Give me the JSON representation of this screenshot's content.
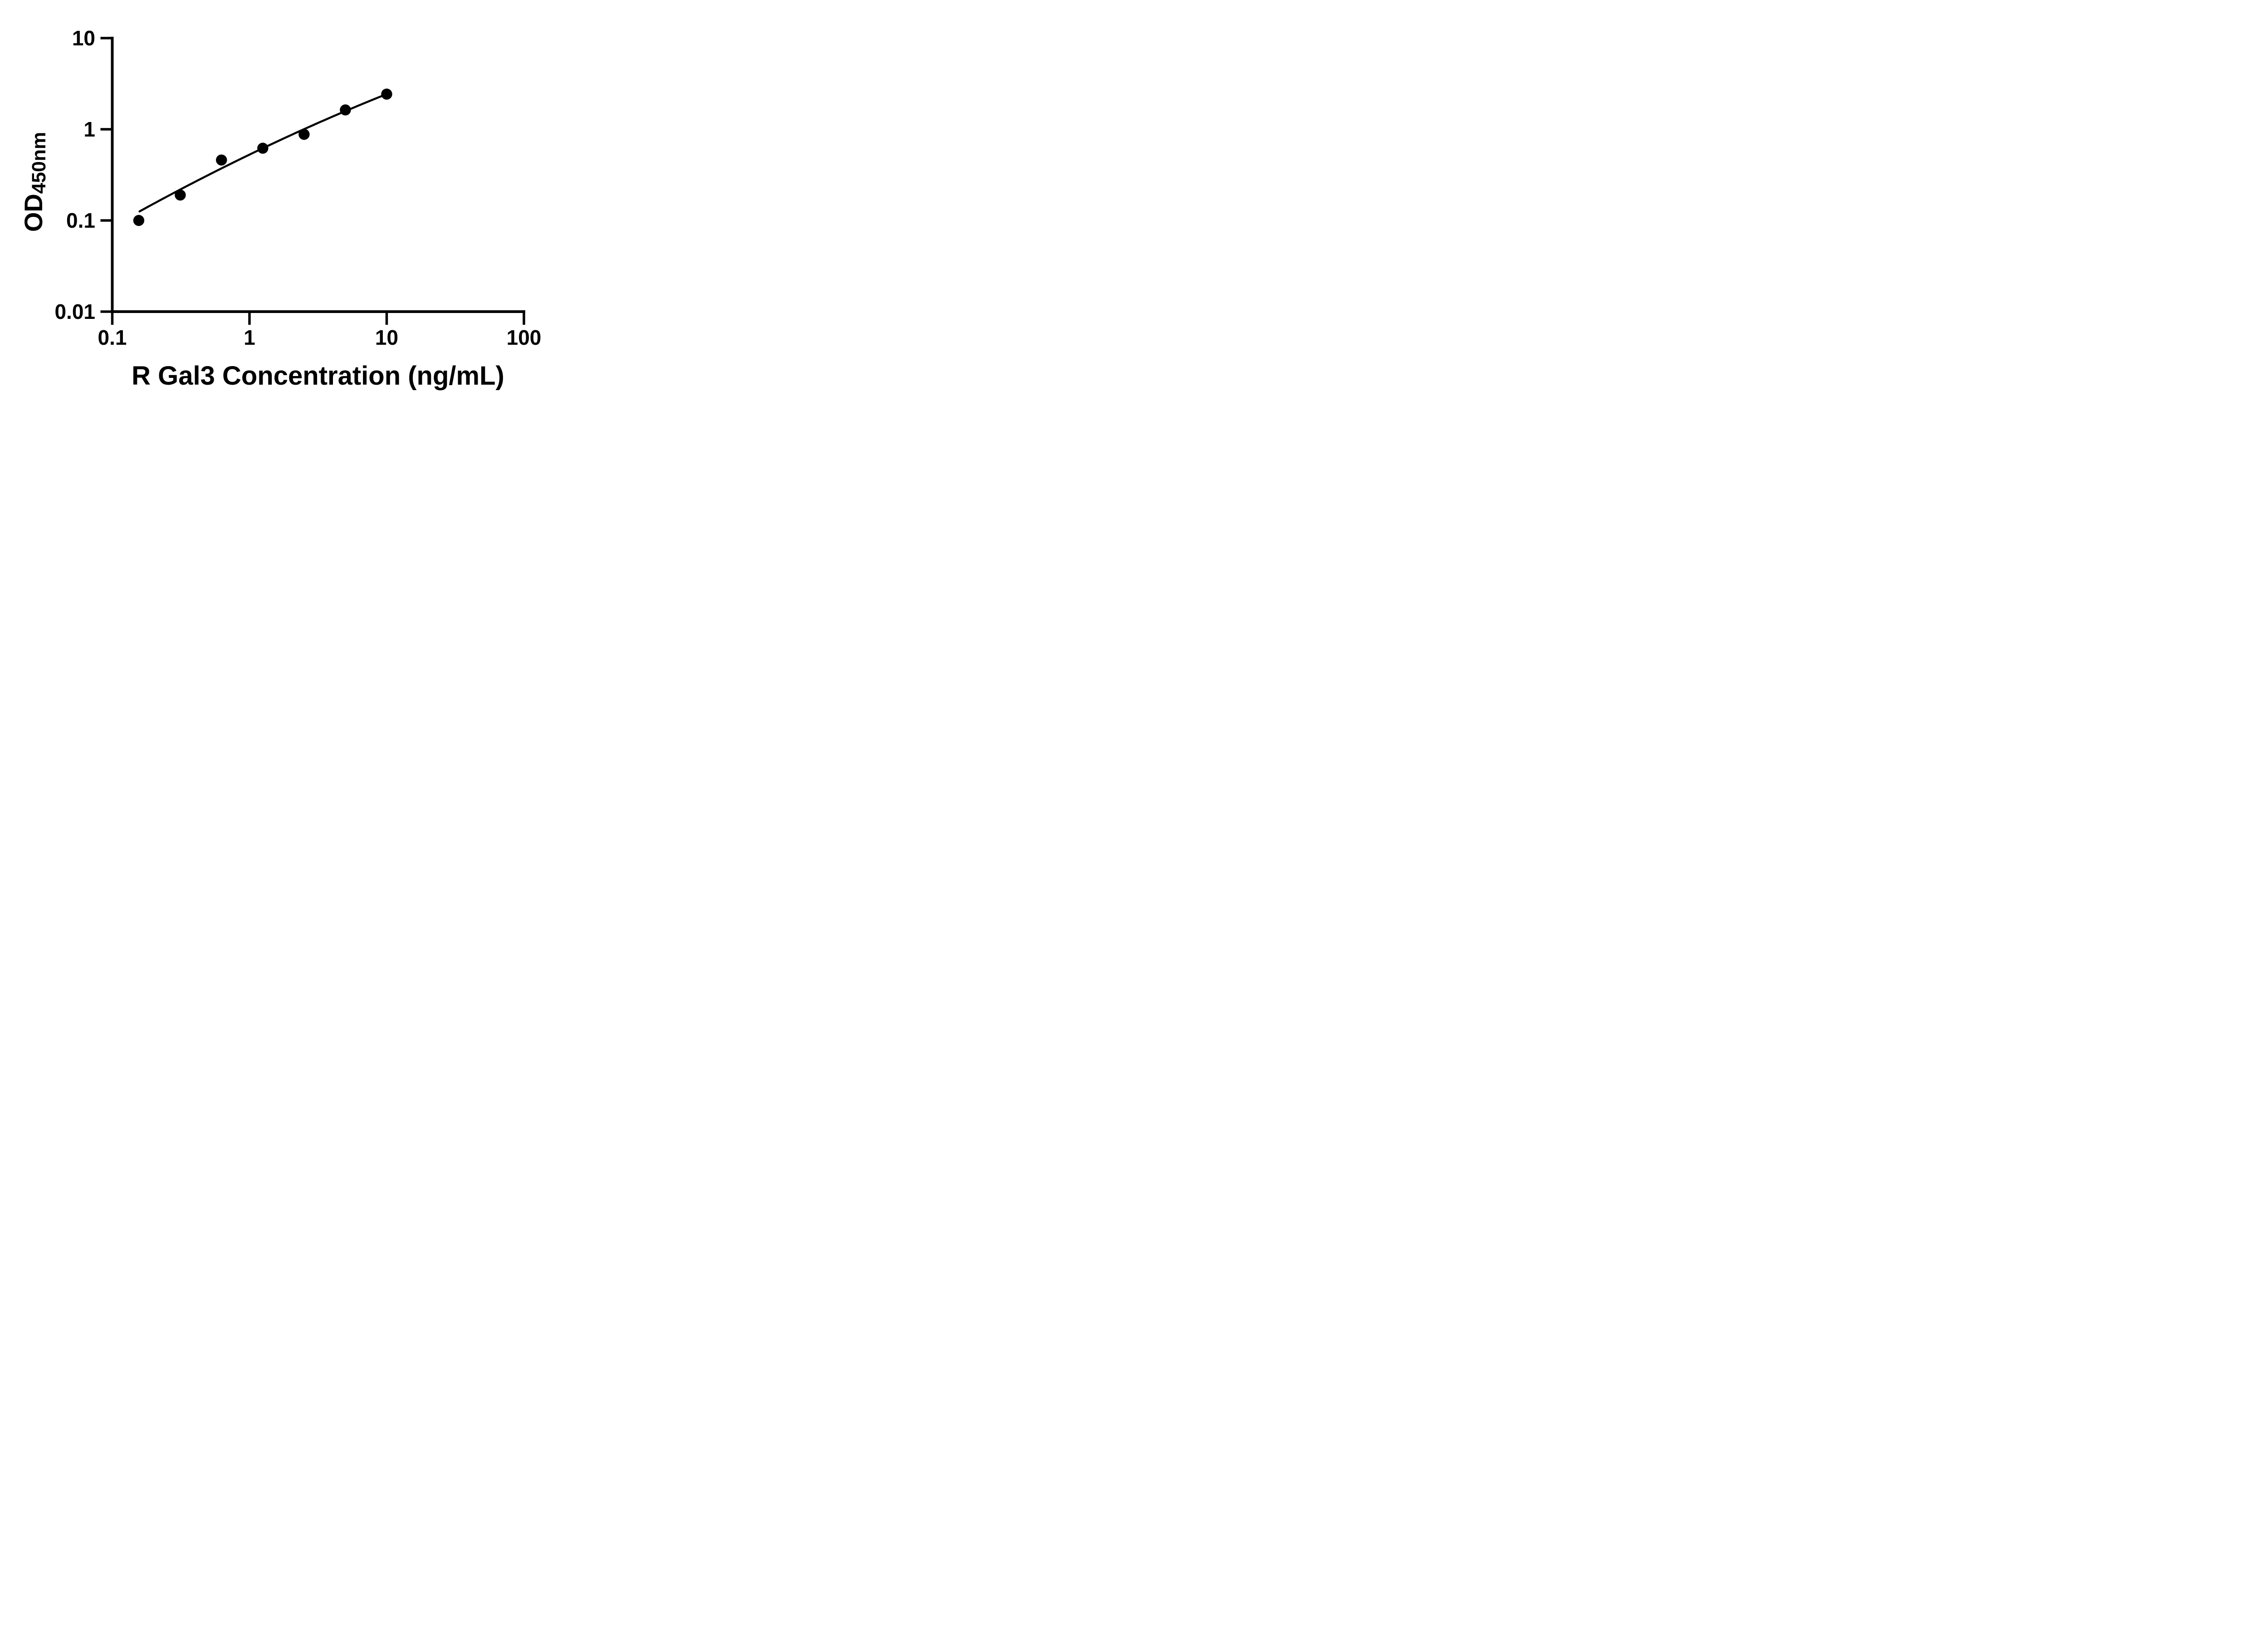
{
  "chart_data": {
    "type": "scatter",
    "title": "",
    "xlabel": "R Gal3 Concentration (ng/mL)",
    "ylabel": "OD450nm",
    "ylabel_main": "OD",
    "ylabel_sub": "450nm",
    "x_scale": "log",
    "y_scale": "log",
    "xlim": [
      0.1,
      100
    ],
    "ylim": [
      0.01,
      10
    ],
    "grid": false,
    "legend": "none",
    "x_ticks": [
      {
        "value": 0.1,
        "label": "0.1"
      },
      {
        "value": 1,
        "label": "1"
      },
      {
        "value": 10,
        "label": "10"
      },
      {
        "value": 100,
        "label": "100"
      }
    ],
    "y_ticks": [
      {
        "value": 10,
        "label": "10"
      },
      {
        "value": 1,
        "label": "1"
      },
      {
        "value": 0.1,
        "label": "0.1"
      },
      {
        "value": 0.01,
        "label": "0.01"
      }
    ],
    "series": [
      {
        "name": "standard-curve-points",
        "marker": "filled-circle",
        "color": "#000000",
        "points": [
          {
            "x": 0.156,
            "y": 0.1
          },
          {
            "x": 0.313,
            "y": 0.19
          },
          {
            "x": 0.625,
            "y": 0.46
          },
          {
            "x": 1.25,
            "y": 0.62
          },
          {
            "x": 2.5,
            "y": 0.88
          },
          {
            "x": 5,
            "y": 1.63
          },
          {
            "x": 10,
            "y": 2.43
          }
        ]
      }
    ],
    "trend_line": {
      "style": "solid",
      "color": "#000000",
      "x_start": 0.158,
      "x_end": 10,
      "log10_quadratic": {
        "a": -0.278,
        "b": 0.727,
        "c": -0.0629
      }
    },
    "colors": {
      "foreground": "#000000",
      "background": "#ffffff"
    }
  }
}
